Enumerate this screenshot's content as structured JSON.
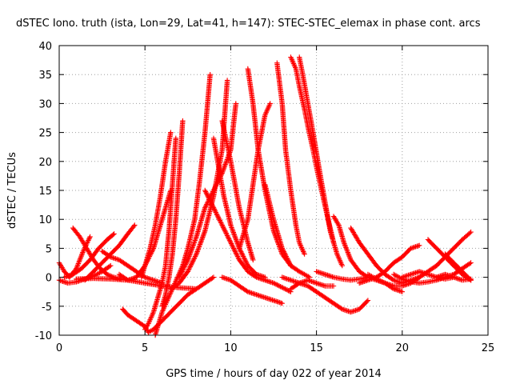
{
  "chart_data": {
    "type": "scatter",
    "title": "dSTEC Iono. truth (ista, Lon=29, Lat=41, h=147): STEC-STEC_elemax in phase cont. arcs",
    "xlabel": "GPS time / hours of day 022 of year 2014",
    "ylabel": "dSTEC  / TECUs",
    "xlim": [
      0,
      25
    ],
    "ylim": [
      -10,
      40
    ],
    "xticks": [
      0,
      5,
      10,
      15,
      20,
      25
    ],
    "yticks": [
      -10,
      -5,
      0,
      5,
      10,
      15,
      20,
      25,
      30,
      35,
      40
    ],
    "grid": true,
    "marker": "+",
    "color": "#ff0000",
    "series": [
      {
        "x": [
          0.0,
          0.3,
          0.6,
          1.0,
          1.4,
          1.8
        ],
        "y": [
          2.5,
          1.0,
          0.0,
          1.5,
          4.5,
          7.0
        ]
      },
      {
        "x": [
          0.0,
          0.5,
          1.0,
          1.5,
          2.0,
          2.5,
          3.0
        ],
        "y": [
          -0.5,
          -1.0,
          -0.8,
          -0.3,
          0.2,
          1.0,
          2.0
        ]
      },
      {
        "x": [
          0.3,
          0.8,
          1.3,
          1.8,
          2.3,
          2.8,
          3.2
        ],
        "y": [
          0.0,
          0.5,
          1.5,
          3.0,
          5.0,
          6.5,
          7.5
        ]
      },
      {
        "x": [
          0.8,
          1.2,
          1.6,
          2.0,
          2.4,
          2.8,
          3.2,
          3.6
        ],
        "y": [
          8.5,
          7.0,
          5.0,
          3.0,
          1.5,
          0.5,
          0.0,
          -0.3
        ]
      },
      {
        "x": [
          1.5,
          2.0,
          2.5,
          3.0,
          3.5,
          4.0,
          4.4
        ],
        "y": [
          -0.5,
          1.0,
          2.5,
          4.0,
          5.5,
          7.5,
          9.0
        ]
      },
      {
        "x": [
          2.5,
          3.0,
          3.5,
          4.0,
          4.5,
          5.0,
          5.5,
          6.0
        ],
        "y": [
          4.5,
          3.5,
          3.0,
          2.0,
          1.0,
          0.0,
          -0.5,
          -1.0
        ]
      },
      {
        "x": [
          1.0,
          2.0,
          3.0,
          4.0,
          5.0,
          6.0,
          7.0,
          8.0
        ],
        "y": [
          -0.3,
          -0.2,
          -0.3,
          -0.5,
          -1.0,
          -1.5,
          -1.8,
          -2.0
        ]
      },
      {
        "x": [
          3.7,
          4.0,
          4.5,
          5.0,
          5.2,
          5.5,
          6.0,
          6.5,
          7.0,
          7.5,
          8.0,
          8.5,
          9.0
        ],
        "y": [
          -5.5,
          -6.5,
          -7.5,
          -8.5,
          -9.5,
          -9.0,
          -7.5,
          -6.0,
          -4.5,
          -3.0,
          -2.0,
          -1.0,
          0.0
        ]
      },
      {
        "x": [
          3.5,
          4.0,
          4.5,
          5.0,
          5.5,
          6.0,
          6.5
        ],
        "y": [
          0.5,
          -0.5,
          0.0,
          2.0,
          5.0,
          10.0,
          15.0
        ]
      },
      {
        "x": [
          5.0,
          5.2,
          5.5,
          5.8,
          6.0,
          6.2,
          6.4,
          6.6,
          6.8
        ],
        "y": [
          -9.0,
          -8.0,
          -6.0,
          -3.0,
          -1.0,
          2.0,
          8.0,
          16.0,
          24.0
        ]
      },
      {
        "x": [
          4.8,
          5.0,
          5.3,
          5.6,
          5.9,
          6.2,
          6.5
        ],
        "y": [
          0.0,
          2.0,
          5.0,
          9.0,
          14.0,
          20.0,
          25.0
        ]
      },
      {
        "x": [
          5.6,
          5.8,
          6.0,
          6.3,
          6.6,
          6.9,
          7.2,
          7.5,
          7.9,
          8.2,
          8.5,
          8.8
        ],
        "y": [
          -10.0,
          -8.0,
          -6.0,
          -4.0,
          -2.0,
          0.0,
          2.0,
          5.0,
          10.0,
          17.0,
          25.0,
          35.0
        ]
      },
      {
        "x": [
          6.0,
          6.2,
          6.4,
          6.6,
          6.8,
          7.0,
          7.2
        ],
        "y": [
          -5.0,
          -3.0,
          0.0,
          4.0,
          10.0,
          18.0,
          27.0
        ]
      },
      {
        "x": [
          6.5,
          7.0,
          7.5,
          8.0,
          8.5,
          9.0,
          9.5,
          9.8
        ],
        "y": [
          -2.0,
          -1.0,
          1.0,
          4.0,
          8.0,
          14.0,
          22.0,
          34.0
        ]
      },
      {
        "x": [
          7.0,
          7.5,
          8.0,
          8.5,
          9.0,
          9.5,
          10.0,
          10.3
        ],
        "y": [
          0.0,
          3.0,
          7.0,
          12.0,
          15.0,
          18.0,
          22.0,
          30.0
        ]
      },
      {
        "x": [
          9.0,
          9.3,
          9.6,
          10.0,
          10.5,
          11.0,
          11.5,
          12.0
        ],
        "y": [
          24.0,
          19.0,
          14.0,
          9.0,
          5.0,
          2.0,
          0.5,
          0.0
        ]
      },
      {
        "x": [
          8.5,
          9.0,
          9.5,
          10.0,
          10.5,
          11.0,
          11.5,
          12.5,
          13.5
        ],
        "y": [
          15.0,
          12.0,
          9.0,
          6.0,
          3.0,
          1.0,
          0.0,
          -1.0,
          -2.5
        ]
      },
      {
        "x": [
          9.5,
          10.0,
          10.5,
          11.0,
          11.3
        ],
        "y": [
          27.0,
          20.0,
          12.0,
          6.0,
          3.0
        ]
      },
      {
        "x": [
          9.5,
          10.0,
          10.5,
          11.0,
          11.5,
          12.0,
          12.5,
          13.0
        ],
        "y": [
          0.0,
          -0.5,
          -1.5,
          -2.5,
          -3.0,
          -3.5,
          -4.0,
          -4.5
        ]
      },
      {
        "x": [
          11.0,
          11.3,
          11.6,
          12.0,
          12.5,
          13.0,
          13.5
        ],
        "y": [
          36.0,
          30.0,
          22.0,
          15.0,
          8.0,
          4.0,
          2.0
        ]
      },
      {
        "x": [
          10.5,
          11.0,
          11.3,
          11.6,
          12.0,
          12.3
        ],
        "y": [
          5.0,
          10.0,
          16.0,
          22.0,
          28.0,
          30.0
        ]
      },
      {
        "x": [
          12.7,
          13.0,
          13.2,
          13.5,
          13.8,
          14.0,
          14.3
        ],
        "y": [
          37.0,
          30.0,
          22.0,
          15.0,
          9.0,
          6.0,
          4.0
        ]
      },
      {
        "x": [
          12.0,
          12.5,
          13.0,
          13.5,
          14.0,
          14.3,
          14.6
        ],
        "y": [
          16.0,
          10.0,
          5.0,
          2.0,
          1.0,
          0.5,
          0.0
        ]
      },
      {
        "x": [
          13.5,
          13.8,
          14.0,
          14.3,
          14.5,
          14.8,
          15.0,
          15.3,
          15.6,
          16.0
        ],
        "y": [
          38.0,
          36.0,
          33.0,
          29.0,
          26.0,
          22.0,
          19.0,
          15.0,
          11.0,
          6.0
        ]
      },
      {
        "x": [
          14.0,
          14.2,
          14.5,
          14.8,
          15.2,
          15.5,
          15.8,
          16.2,
          16.5
        ],
        "y": [
          38.0,
          35.0,
          30.0,
          25.0,
          18.0,
          13.0,
          8.0,
          4.0,
          2.0
        ]
      },
      {
        "x": [
          13.0,
          13.5,
          14.0,
          14.5,
          15.0,
          15.5,
          16.0,
          16.5,
          17.0,
          17.5,
          18.0
        ],
        "y": [
          0.0,
          -0.5,
          -1.0,
          -1.5,
          -2.5,
          -3.5,
          -4.5,
          -5.5,
          -6.0,
          -5.5,
          -4.0
        ]
      },
      {
        "x": [
          13.5,
          14.0,
          14.5,
          15.0,
          15.5,
          16.0
        ],
        "y": [
          -2.0,
          -1.0,
          -0.5,
          -1.0,
          -1.5,
          -1.5
        ]
      },
      {
        "x": [
          16.0,
          16.3,
          16.6,
          17.0,
          17.5,
          18.0,
          18.5,
          19.0,
          19.5,
          20.0
        ],
        "y": [
          10.5,
          9.0,
          6.0,
          3.0,
          1.0,
          0.0,
          -0.5,
          -1.0,
          -2.0,
          -2.5
        ]
      },
      {
        "x": [
          15.0,
          15.5,
          16.0,
          16.5,
          17.0,
          17.5,
          18.0
        ],
        "y": [
          1.0,
          0.5,
          0.0,
          -0.3,
          -0.5,
          -0.3,
          0.0
        ]
      },
      {
        "x": [
          17.0,
          17.5,
          18.0,
          18.5,
          19.0,
          19.5,
          20.0,
          20.5,
          21.0
        ],
        "y": [
          8.5,
          6.0,
          4.0,
          2.0,
          0.5,
          -0.5,
          -1.0,
          -0.5,
          0.0
        ]
      },
      {
        "x": [
          18.0,
          18.5,
          19.0,
          19.5,
          20.0,
          20.5,
          21.0,
          21.5,
          22.0
        ],
        "y": [
          0.5,
          -0.3,
          -1.0,
          -1.5,
          -1.5,
          -1.0,
          0.0,
          1.0,
          2.0
        ]
      },
      {
        "x": [
          17.5,
          18.0,
          18.5,
          19.0,
          19.5,
          20.0,
          20.5,
          21.0
        ],
        "y": [
          -1.0,
          -0.5,
          0.0,
          1.0,
          2.5,
          3.5,
          5.0,
          5.5
        ]
      },
      {
        "x": [
          19.5,
          20.0,
          20.5,
          21.0,
          21.5,
          22.0,
          22.5,
          23.0,
          23.5,
          24.0
        ],
        "y": [
          0.5,
          -0.3,
          -0.8,
          -1.0,
          -0.8,
          -0.5,
          0.0,
          0.5,
          1.5,
          2.5
        ]
      },
      {
        "x": [
          20.0,
          20.5,
          21.0,
          21.5,
          22.0,
          22.5,
          23.0
        ],
        "y": [
          0.0,
          0.5,
          1.0,
          0.5,
          0.0,
          -0.3,
          0.0
        ]
      },
      {
        "x": [
          21.5,
          22.0,
          22.5,
          23.0,
          23.5,
          24.0
        ],
        "y": [
          6.5,
          5.0,
          3.5,
          2.0,
          0.5,
          -0.5
        ]
      },
      {
        "x": [
          22.0,
          22.5,
          23.0,
          23.5,
          24.0
        ],
        "y": [
          2.0,
          3.5,
          5.0,
          6.5,
          7.8
        ]
      },
      {
        "x": [
          22.5,
          23.0,
          23.5,
          24.0
        ],
        "y": [
          4.0,
          2.5,
          1.0,
          -0.5
        ]
      },
      {
        "x": [
          22.0,
          22.5,
          23.0,
          23.5,
          24.0
        ],
        "y": [
          0.0,
          0.5,
          0.0,
          -0.5,
          -0.3
        ]
      }
    ]
  }
}
